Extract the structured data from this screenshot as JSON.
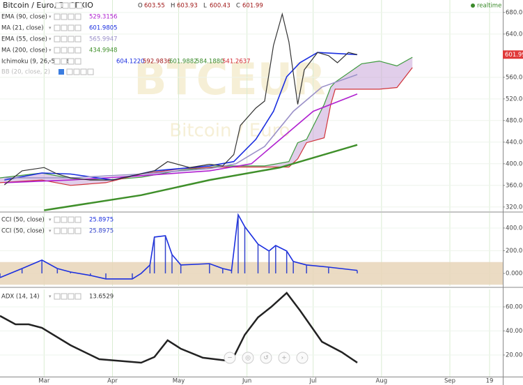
{
  "chart_data": [
    {
      "type": "line",
      "title": "Bitcoin / Euro, D, CEXIO",
      "quote": [
        {
          "label": "O",
          "value": 603.55
        },
        {
          "label": "H",
          "value": 603.93
        },
        {
          "label": "L",
          "value": 600.43
        },
        {
          "label": "C",
          "value": 601.99
        }
      ],
      "watermark": [
        "BTCEUR",
        "Bitcoin / Euro"
      ],
      "status": "realtime",
      "inactive_indicator": "BB (20, close, 2)",
      "ylim": [
        312,
        703
      ],
      "yticks": [
        {
          "value": 320,
          "label": "320.00"
        },
        {
          "value": 360,
          "label": "360.00"
        },
        {
          "value": 400,
          "label": "400.00"
        },
        {
          "value": 440,
          "label": "440.00"
        },
        {
          "value": 480,
          "label": "480.00"
        },
        {
          "value": 520,
          "label": "520.00"
        },
        {
          "value": 560,
          "label": "560.00"
        },
        {
          "value": 640,
          "label": "640.00"
        },
        {
          "value": 680,
          "label": "680.00"
        }
      ],
      "price": {
        "color": "#333333",
        "x": [
          42,
          50,
          60,
          66,
          72,
          81,
          91,
          100,
          110,
          116,
          126,
          135,
          141,
          146,
          149,
          156,
          160,
          164,
          168,
          171,
          175,
          178,
          184,
          189,
          193,
          198,
          202
        ],
        "values": [
          361,
          387,
          393,
          381,
          374,
          370,
          370,
          378,
          387,
          404,
          393,
          399,
          396,
          417,
          471,
          503,
          516,
          619,
          677,
          626,
          510,
          574,
          606,
          600,
          587,
          606,
          601.99
        ]
      },
      "series": [
        {
          "name": "EMA (90, close)",
          "color": "#b020d0",
          "legend_value": 529.3156,
          "x": [
            42,
            72,
            104,
            135,
            154,
            167,
            182,
            202
          ],
          "values": [
            365,
            370,
            378,
            387,
            400,
            445,
            497,
            529
          ]
        },
        {
          "name": "MA (21, close)",
          "color": "#1a2ee0",
          "legend_value": 601.9805,
          "x": [
            42,
            59,
            72,
            91,
            110,
            135,
            146,
            156,
            164,
            170,
            176,
            184,
            202
          ],
          "values": [
            370,
            383,
            381,
            370,
            387,
            396,
            404,
            445,
            497,
            561,
            587,
            606,
            602
          ]
        },
        {
          "name": "EMA (55, close)",
          "color": "#9a90c8",
          "legend_value": 565.9947,
          "x": [
            42,
            72,
            104,
            135,
            147,
            160,
            173,
            186,
            202
          ],
          "values": [
            374,
            374,
            381,
            391,
            400,
            432,
            497,
            542,
            565
          ]
        },
        {
          "name": "MA (200, close)",
          "color": "#3f8f2a",
          "legend_value": 434.9948,
          "x": [
            60,
            104,
            135,
            167,
            202
          ],
          "values": [
            314,
            342,
            370,
            393,
            435
          ]
        }
      ],
      "ichimoku": {
        "name": "Ichimoku (9, 26, 52, 26)",
        "value_labels": [
          "604.1220",
          "592.9836",
          "601.9882",
          "584.1880",
          "541.2637"
        ],
        "value_colors": [
          "#1a2ee0",
          "#a01818",
          "#3a8a2a",
          "#3a8a2a",
          "#d0262e"
        ],
        "span_a_color": "#3c9a3c",
        "span_b_color": "#d0333a",
        "fill_color": "#c9a6d8",
        "x": [
          40,
          59,
          72,
          88,
          104,
          122,
          141,
          160,
          171,
          175,
          179,
          187,
          190,
          192,
          204,
          212,
          220,
          227
        ],
        "span_a": [
          374,
          383,
          373,
          370,
          375,
          388,
          396,
          396,
          404,
          439,
          445,
          510,
          542,
          551,
          585,
          590,
          581,
          597
        ],
        "span_b": [
          365,
          370,
          360,
          365,
          381,
          391,
          394,
          394,
          394,
          409,
          439,
          448,
          510,
          538,
          538,
          538,
          541,
          578
        ]
      }
    },
    {
      "type": "line",
      "ylim": [
        -111,
        535
      ],
      "yticks": [
        {
          "value": 0,
          "label": "0.0000"
        },
        {
          "value": 200,
          "label": "200.0000"
        },
        {
          "value": 400,
          "label": "400.0000"
        }
      ],
      "band": [
        -100,
        100
      ],
      "band_color": "#e8d5b8",
      "series": [
        {
          "name": "CCI (50, close)",
          "color": "#1a2ee0",
          "style": "line",
          "legend_value": 25.8975,
          "x": [
            40,
            50,
            59,
            66,
            72,
            81,
            88,
            100,
            104,
            108,
            110,
            115,
            118,
            122,
            135,
            141,
            145,
            148,
            151,
            157,
            162,
            165,
            170,
            173,
            179,
            189,
            202
          ],
          "values": [
            -37,
            43,
            117,
            43,
            12,
            -18,
            -49,
            -49,
            0,
            74,
            320,
            332,
            166,
            74,
            86,
            43,
            25,
            517,
            412,
            258,
            197,
            246,
            197,
            105,
            74,
            55,
            25.8975
          ]
        },
        {
          "name": "CCI (50, close)",
          "color": "#3344cc",
          "style": "histogram",
          "legend_value": 25.8975,
          "x": [
            40,
            50,
            59,
            66,
            72,
            81,
            88,
            100,
            104,
            108,
            110,
            115,
            118,
            122,
            135,
            141,
            145,
            148,
            151,
            157,
            162,
            165,
            170,
            173,
            179,
            189,
            202
          ],
          "values": [
            -37,
            43,
            117,
            43,
            12,
            -18,
            -49,
            -49,
            0,
            74,
            320,
            332,
            166,
            74,
            86,
            43,
            25,
            517,
            412,
            258,
            197,
            246,
            197,
            105,
            74,
            55,
            25.8975
          ]
        }
      ]
    },
    {
      "type": "line",
      "ylim": [
        2,
        74.5
      ],
      "yticks": [
        {
          "value": 20,
          "label": "20.0000"
        },
        {
          "value": 40,
          "label": "40.0000"
        },
        {
          "value": 60,
          "label": "60.0000"
        }
      ],
      "xlim": [
        40,
        268
      ],
      "xticks": [
        {
          "value": 60,
          "label": "Mar"
        },
        {
          "value": 91,
          "label": "Apr"
        },
        {
          "value": 121,
          "label": "May"
        },
        {
          "value": 152,
          "label": "Jun"
        },
        {
          "value": 182,
          "label": "Jul"
        },
        {
          "value": 213,
          "label": "Aug"
        },
        {
          "value": 244,
          "label": "Sep"
        },
        {
          "value": 262,
          "label": "19"
        }
      ],
      "series": [
        {
          "name": "ADX (14, 14)",
          "color": "#222222",
          "style": "line",
          "legend_value": 13.6529,
          "x": [
            40,
            47,
            53,
            59,
            72,
            85,
            104,
            110,
            116,
            122,
            132,
            145,
            151,
            157,
            163,
            170,
            176,
            186,
            195,
            202
          ],
          "values": [
            52.5,
            45.5,
            45.5,
            42.6,
            28.1,
            16.5,
            13.6,
            18.3,
            32.2,
            25.2,
            17.7,
            14.8,
            36.8,
            51.3,
            60,
            71.6,
            57.1,
            31,
            22.3,
            13.6529
          ]
        }
      ]
    }
  ]
}
